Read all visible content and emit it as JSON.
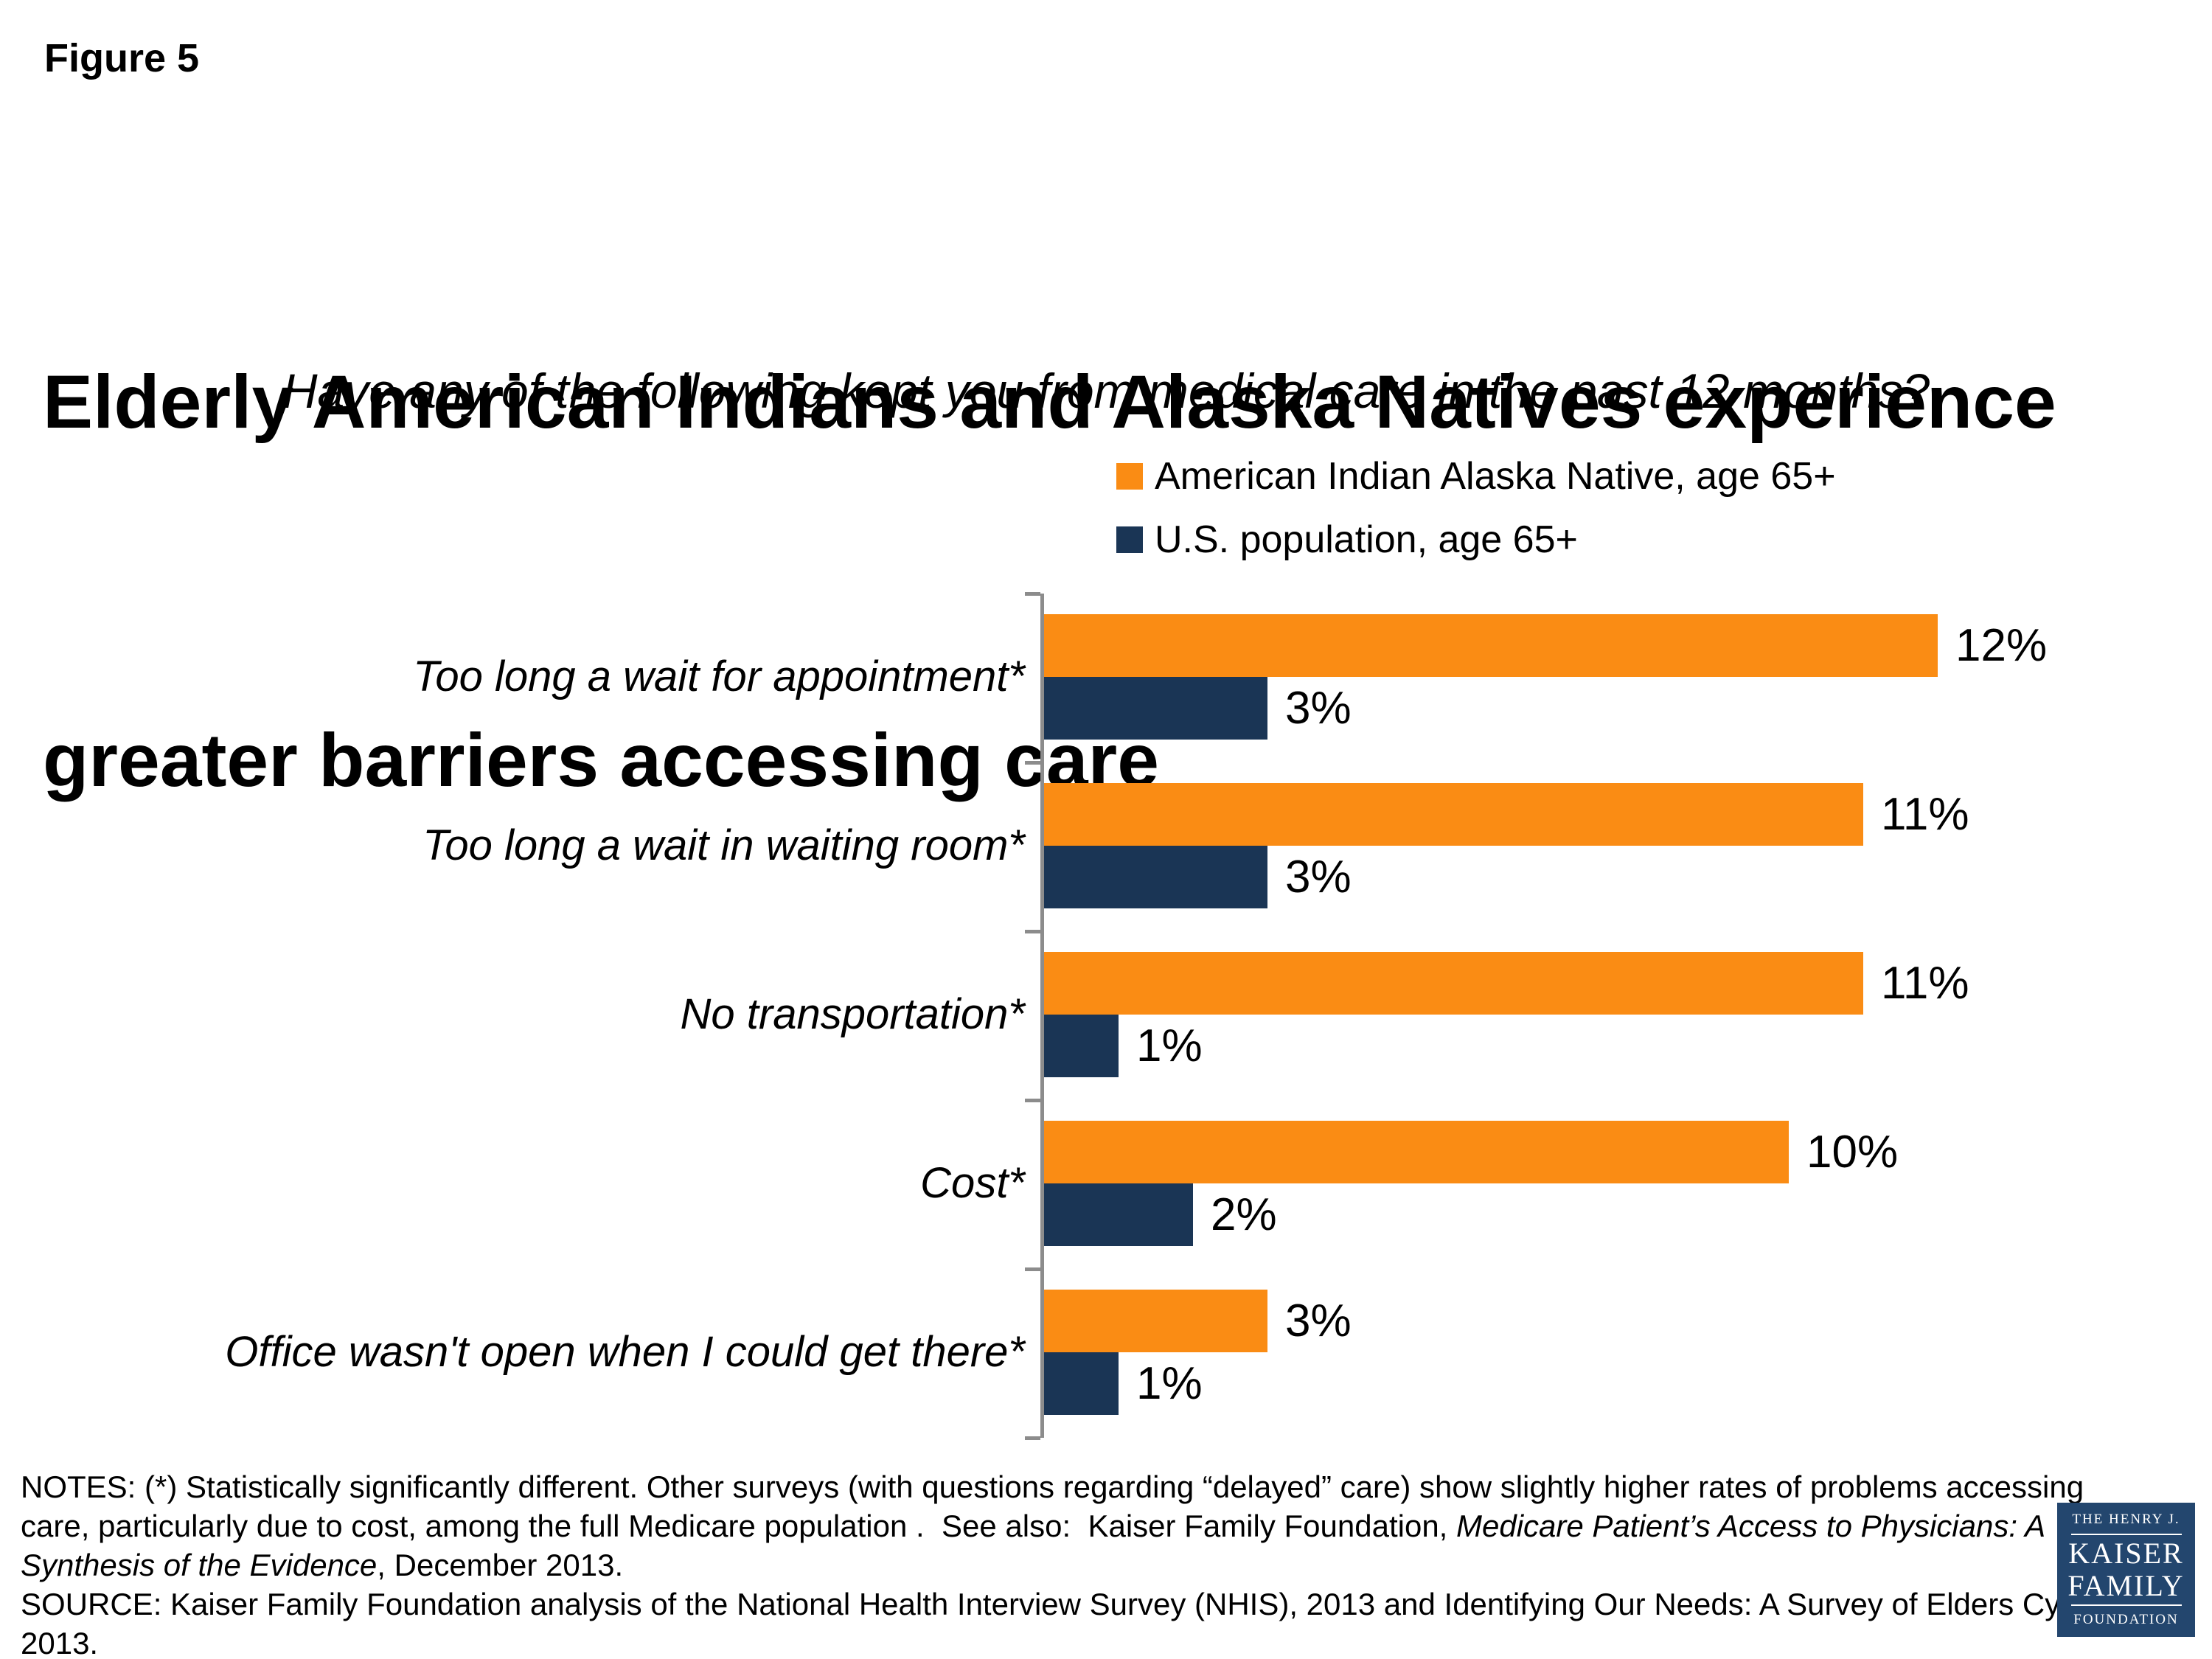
{
  "figure_label": "Figure 5",
  "title_lines": [
    "Elderly American Indians and Alaska Natives experience",
    "greater barriers accessing care"
  ],
  "subtitle": "Have any of the following kept you from medical care in the past 12 months?",
  "chart_data": {
    "type": "bar",
    "orientation": "horizontal",
    "title": "Have any of the following kept you from medical care in the past 12 months?",
    "categories": [
      "Too long a wait for appointment*",
      "Too long a wait in waiting room*",
      "No transportation*",
      "Cost*",
      "Office wasn't open when I could get there*"
    ],
    "series": [
      {
        "name": "American Indian Alaska Native, age 65+",
        "color": "#FA8C14",
        "values": [
          12,
          11,
          11,
          10,
          3
        ],
        "value_labels": [
          "12%",
          "11%",
          "11%",
          "10%",
          "3%"
        ]
      },
      {
        "name": "U.S. population, age 65+",
        "color": "#1A3555",
        "values": [
          3,
          3,
          1,
          2,
          1
        ],
        "value_labels": [
          "3%",
          "3%",
          "1%",
          "2%",
          "1%"
        ]
      }
    ],
    "value_unit": "%",
    "axis": {
      "min": 0,
      "max": 15,
      "gridlines": false,
      "tick_labels_shown": false
    },
    "legend_position": "top-right",
    "data_labels": "outside-end"
  },
  "notes": {
    "line1": "NOTES: (*) Statistically significantly different. Other surveys (with questions regarding “delayed” care) show slightly higher rates of problems accessing",
    "line2_prefix": "care, particularly due to cost, among the full Medicare population .  See also:  Kaiser Family Foundation, ",
    "line2_italic": "Medicare Patient’s Access to Physicians: A",
    "line3_italic": "Synthesis of the Evidence",
    "line3_suffix": ", December 2013.",
    "line4": "SOURCE: Kaiser Family Foundation analysis of the National Health Interview Survey (NHIS), 2013 and Identifying Our Needs: A Survey of Elders Cycle V,",
    "line5": "2013."
  },
  "logo": {
    "top": "THE HENRY J.",
    "name1": "KAISER",
    "name2": "FAMILY",
    "bottom": "FOUNDATION",
    "bg_color": "#23466E"
  },
  "colors": {
    "orange": "#FA8C14",
    "navy": "#1A3555",
    "axis_gray": "#8C8C8C",
    "text": "#000000",
    "background": "#FFFFFF"
  }
}
